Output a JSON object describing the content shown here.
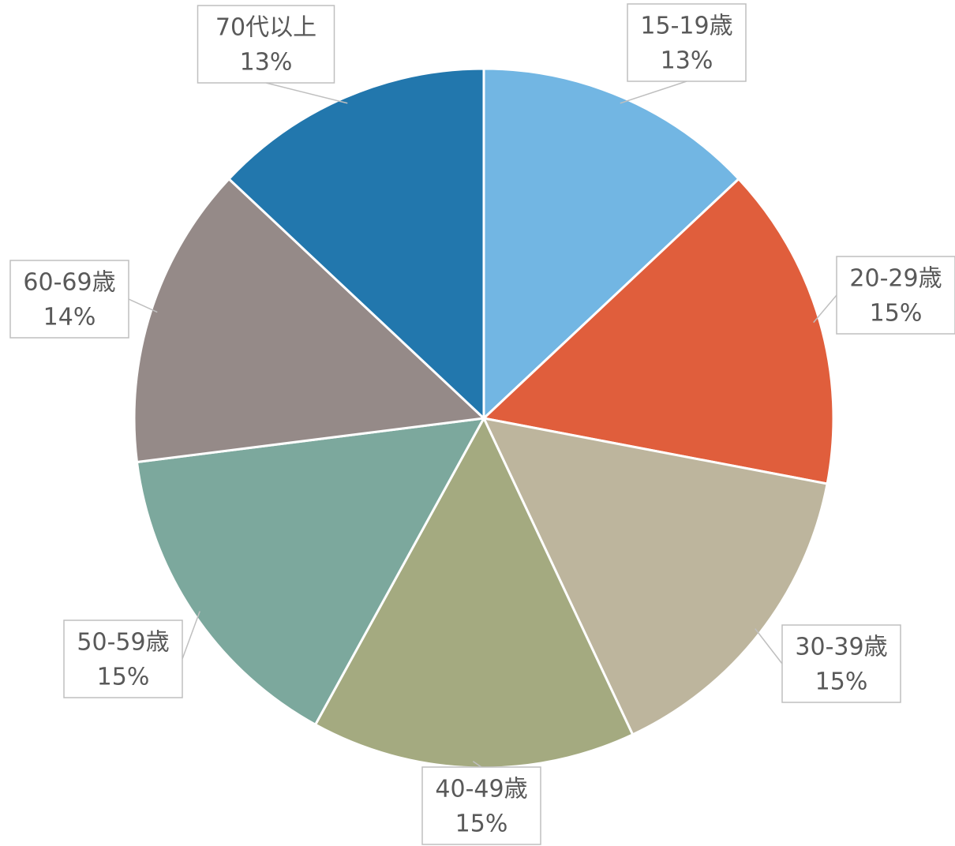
{
  "chart_data": {
    "type": "pie",
    "categories": [
      "15-19歳",
      "20-29歳",
      "30-39歳",
      "40-49歳",
      "50-59歳",
      "60-69歳",
      "70代以上"
    ],
    "values": [
      13,
      15,
      15,
      15,
      15,
      14,
      13
    ],
    "value_labels": [
      "13%",
      "15%",
      "15%",
      "15%",
      "15%",
      "14%",
      "13%"
    ],
    "colors": [
      "#72b6e3",
      "#e05e3c",
      "#bdb59d",
      "#a4aa80",
      "#7ca89d",
      "#958a88",
      "#2277ad"
    ]
  }
}
